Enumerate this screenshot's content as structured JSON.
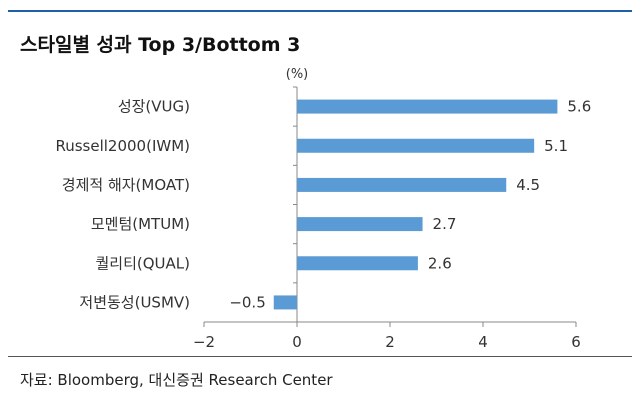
{
  "title": "스타일별 성과 Top 3/Bottom 3",
  "source": "자료: Bloomberg, 대신증권 Research Center",
  "chart_data": {
    "type": "bar",
    "orientation": "horizontal",
    "unit": "(%)",
    "categories": [
      "성장(VUG)",
      "Russell2000(IWM)",
      "경제적 해자(MOAT)",
      "모멘텀(MTUM)",
      "퀄리티(QUAL)",
      "저변동성(USMV)"
    ],
    "values": [
      5.6,
      5.1,
      4.5,
      2.7,
      2.6,
      -0.5
    ],
    "value_labels": [
      "5.6",
      "5.1",
      "4.5",
      "2.7",
      "2.6",
      "−0.5"
    ],
    "xlim": [
      -2,
      6
    ],
    "x_ticks": [
      -2,
      0,
      2,
      4,
      6
    ],
    "x_tick_labels": [
      "−2",
      "0",
      "2",
      "4",
      "6"
    ],
    "bar_color": "#5b9bd5",
    "grid": false,
    "legend": "none"
  }
}
